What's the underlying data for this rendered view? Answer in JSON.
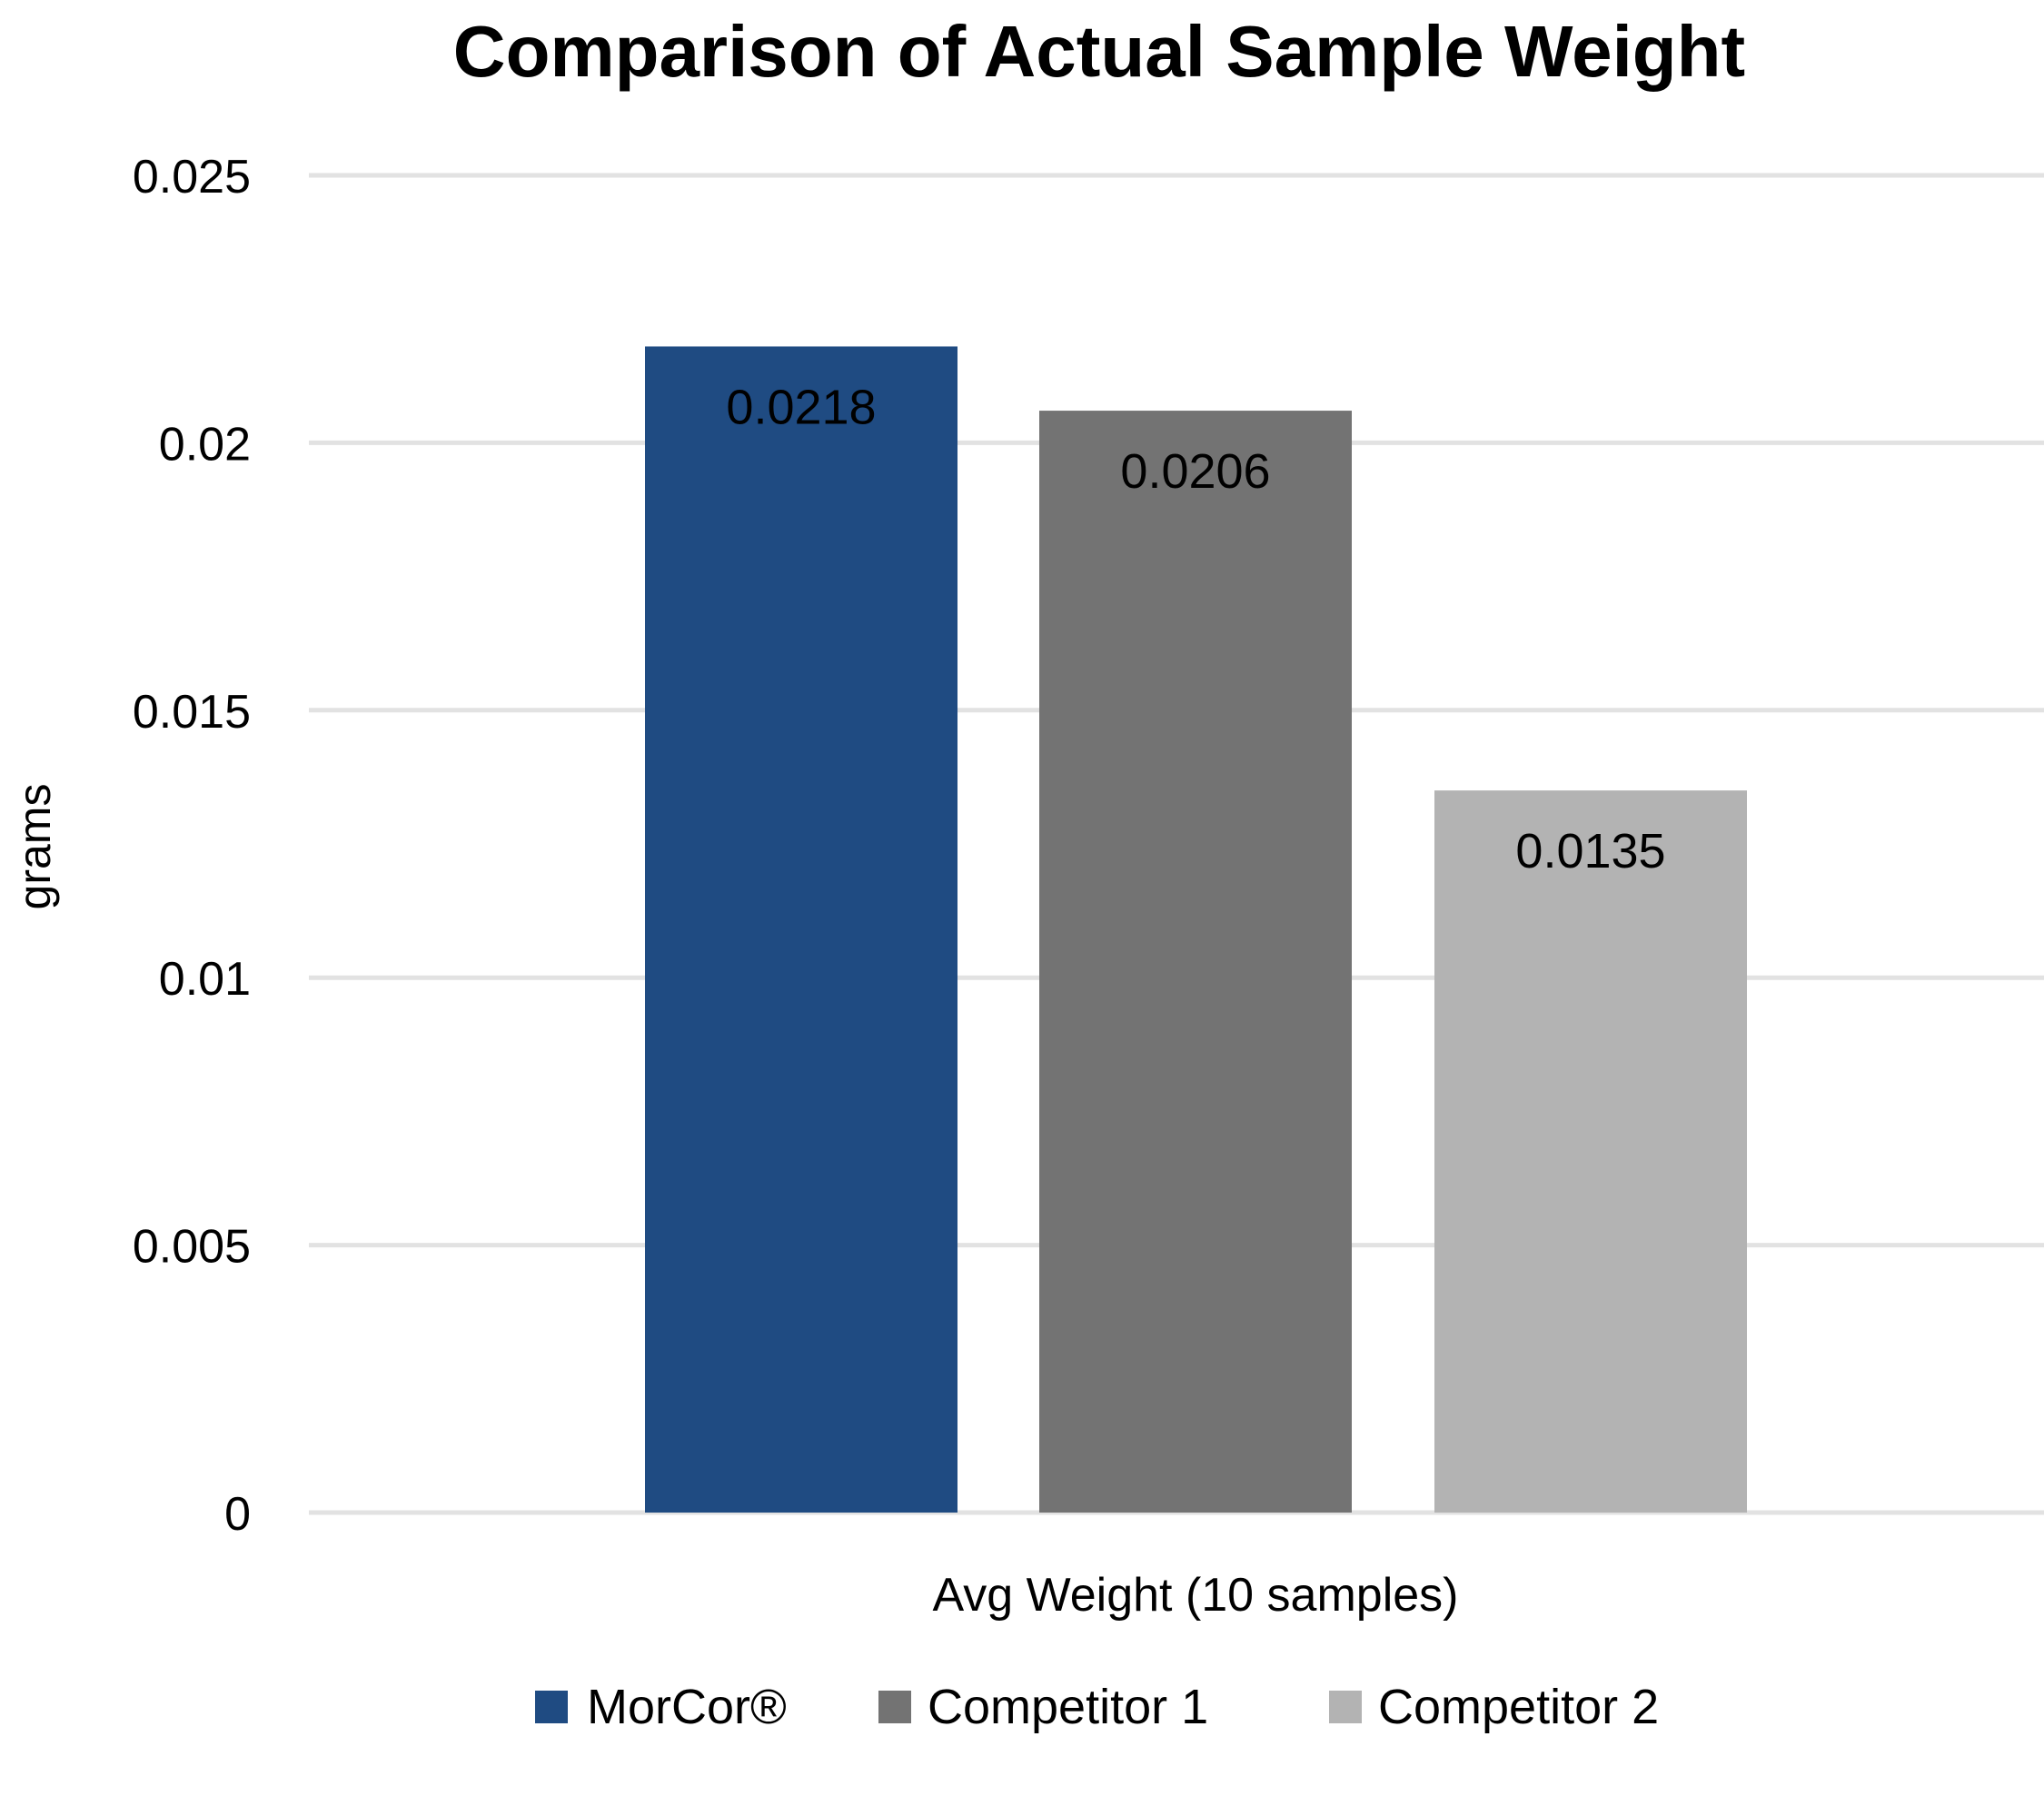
{
  "chart_data": {
    "type": "bar",
    "title": "Comparison of Actual Sample Weight",
    "xlabel": "Avg Weight (10 samples)",
    "ylabel": "grams",
    "categories": [
      "Avg Weight (10 samples)"
    ],
    "series": [
      {
        "name": "MorCor®",
        "values": [
          0.0218
        ],
        "color": "#1f4b82",
        "label": "0.0218"
      },
      {
        "name": "Competitor 1",
        "values": [
          0.0206
        ],
        "color": "#737373",
        "label": "0.0206"
      },
      {
        "name": "Competitor 2",
        "values": [
          0.0135
        ],
        "color": "#b3b3b3",
        "label": "0.0135"
      }
    ],
    "ylim": [
      0,
      0.025
    ],
    "yticks": [
      {
        "value": 0,
        "label": "0"
      },
      {
        "value": 0.005,
        "label": "0.005"
      },
      {
        "value": 0.01,
        "label": "0.01"
      },
      {
        "value": 0.015,
        "label": "0.015"
      },
      {
        "value": 0.02,
        "label": "0.02"
      },
      {
        "value": 0.025,
        "label": "0.025"
      }
    ],
    "grid": true,
    "gridline_color": "#e2e2e2",
    "legend_position": "bottom"
  }
}
